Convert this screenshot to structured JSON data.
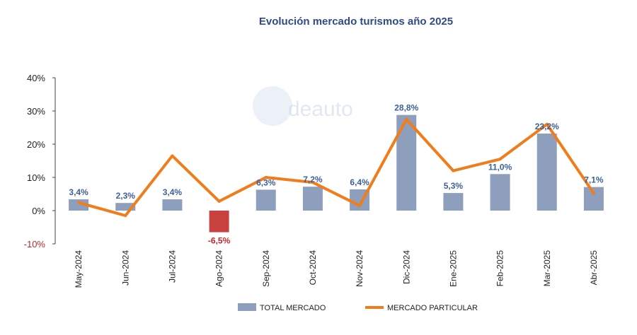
{
  "chart_data": {
    "type": "bar",
    "title": "Evolución mercado turismos año 2025",
    "categories": [
      "May-2024",
      "Jun-2024",
      "Jul-2024",
      "Ago-2024",
      "Sep-2024",
      "Oct-2024",
      "Nov-2024",
      "Dic-2024",
      "Ene-2025",
      "Feb-2025",
      "Mar-2025",
      "Abr-2025"
    ],
    "series": [
      {
        "name": "TOTAL MERCADO",
        "type": "bar",
        "values": [
          3.4,
          2.3,
          3.4,
          -6.5,
          6.3,
          7.2,
          6.4,
          28.8,
          5.3,
          11.0,
          23.2,
          7.1
        ],
        "labels": [
          "3,4%",
          "2,3%",
          "3,4%",
          "-6,5%",
          "6,3%",
          "7,2%",
          "6,4%",
          "28,8%",
          "5,3%",
          "11,0%",
          "23,2%",
          "7,1%"
        ],
        "color": "#8e9fbd",
        "negative_color": "#c9413e"
      },
      {
        "name": "MERCADO PARTICULAR",
        "type": "line",
        "values": [
          2.4,
          -1.5,
          16.5,
          2.8,
          10.0,
          8.5,
          1.5,
          27.5,
          12.0,
          15.5,
          26.0,
          5.2
        ],
        "color": "#f07c1c"
      }
    ],
    "ylim": [
      -10,
      40
    ],
    "yticks": [
      -10,
      0,
      10,
      20,
      30,
      40
    ],
    "ytick_labels": [
      "-10%",
      "0%",
      "10%",
      "20%",
      "30%",
      "40%"
    ],
    "legend": "bottom",
    "grid": false,
    "watermark": "deauto"
  }
}
